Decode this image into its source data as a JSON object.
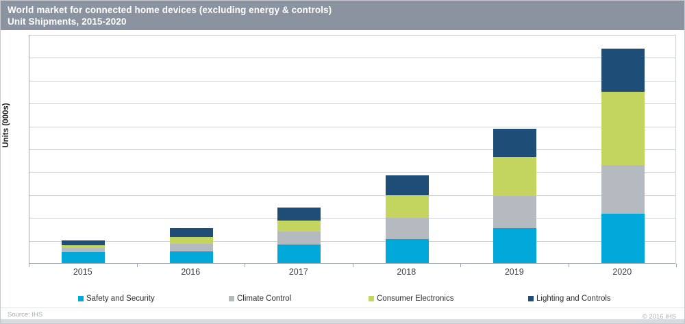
{
  "header": {
    "title_line1": "World market for connected home devices (excluding energy & controls)",
    "title_line2": "Unit Shipments, 2015-2020",
    "background_color": "#8a939f",
    "text_color": "#ffffff"
  },
  "y_axis": {
    "label": "Units (000s)",
    "tick_labels_visible": false
  },
  "footer": {
    "source": "Source: IHS",
    "copyright": "© 2016 IHS"
  },
  "chart_data": {
    "type": "bar",
    "stacked": true,
    "title": "World market for connected home devices (excluding energy & controls)",
    "subtitle": "Unit Shipments, 2015-2020",
    "categories": [
      "2015",
      "2016",
      "2017",
      "2018",
      "2019",
      "2020"
    ],
    "series": [
      {
        "name": "Safety and Security",
        "color": "#00a9da",
        "values": [
          0.47,
          0.5,
          0.8,
          1.06,
          1.53,
          2.16
        ]
      },
      {
        "name": "Climate Control",
        "color": "#b4bac0",
        "values": [
          0.18,
          0.33,
          0.57,
          0.92,
          1.4,
          2.12
        ]
      },
      {
        "name": "Consumer Electronics",
        "color": "#c3d45f",
        "values": [
          0.12,
          0.3,
          0.5,
          0.98,
          1.7,
          3.21
        ]
      },
      {
        "name": "Lighting and Controls",
        "color": "#1e4e78",
        "values": [
          0.21,
          0.4,
          0.55,
          0.88,
          1.23,
          1.87
        ]
      }
    ],
    "totals": [
      0.98,
      1.53,
      2.42,
      3.84,
      5.86,
      9.36
    ],
    "xlabel": "",
    "ylabel": "Units (000s)",
    "ylim": [
      0,
      10
    ],
    "value_unit": "gridline intervals (numeric axis labels not shown in image)",
    "gridlines": true,
    "gridline_count": 10,
    "legend_position": "bottom"
  }
}
